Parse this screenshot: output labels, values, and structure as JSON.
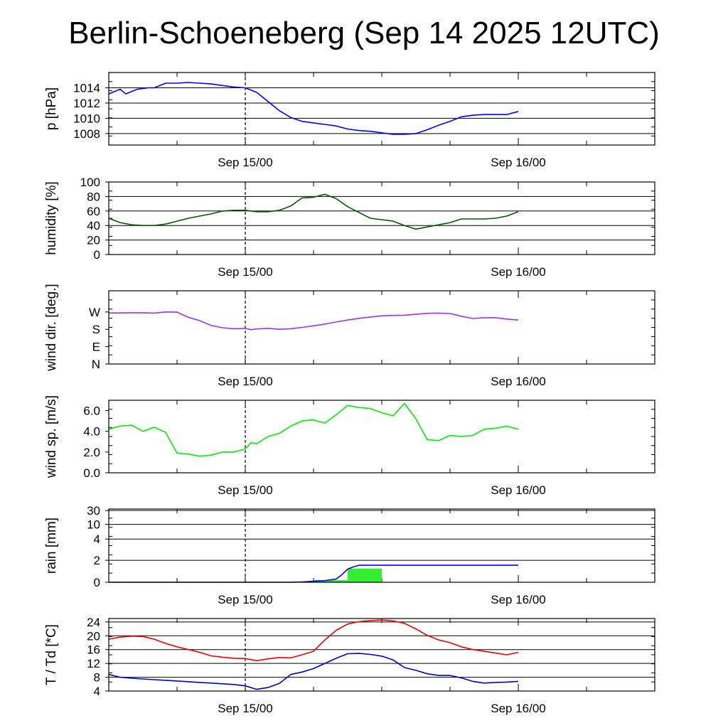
{
  "title": "Berlin-Schoeneberg (Sep 14 2025 12UTC)",
  "colors": {
    "pressure": "#0000ff",
    "humidity": "#005a00",
    "wind_dir": "#9b30ff",
    "wind_speed": "#00ee00",
    "rain_total": "#0000ff",
    "rain_bars": "#33ee33",
    "temperature": "#ee0000",
    "dewpoint": "#0000cc"
  },
  "chart_data": [
    {
      "type": "line",
      "ylabel": "p [hPa]",
      "ylim": [
        1006.5,
        1016
      ],
      "yticks": [
        "1008",
        "1010",
        "1012",
        "1014"
      ],
      "grid": true,
      "xlim": [
        -12,
        36
      ],
      "xticks": [
        "Sep 15/00",
        "Sep 16/00"
      ],
      "series": [
        {
          "x": [
            -12,
            -11.5,
            -11,
            -10.5,
            -10,
            -9.5,
            -9,
            -8.5,
            -8,
            -7.5,
            -7,
            -6,
            -5,
            -4,
            -3,
            -2,
            -1,
            0,
            1,
            2,
            3,
            4,
            5,
            6,
            7,
            8,
            9,
            10,
            11,
            12,
            13,
            14,
            15,
            16,
            17,
            18,
            19,
            20,
            21,
            22,
            23,
            24
          ],
          "y": [
            1013.2,
            1013.5,
            1013.8,
            1013.2,
            1013.5,
            1013.8,
            1013.9,
            1014,
            1014,
            1014.3,
            1014.6,
            1014.6,
            1014.7,
            1014.6,
            1014.5,
            1014.3,
            1014.1,
            1014,
            1013.4,
            1012.2,
            1011,
            1010.1,
            1009.6,
            1009.4,
            1009.2,
            1009,
            1008.6,
            1008.4,
            1008.3,
            1008.1,
            1007.9,
            1007.9,
            1008,
            1008.5,
            1009.1,
            1009.6,
            1010.2,
            1010.4,
            1010.5,
            1010.5,
            1010.5,
            1010.9
          ]
        }
      ]
    },
    {
      "type": "line",
      "ylabel": "humidity [%]",
      "ylim": [
        0,
        100
      ],
      "yticks": [
        "0",
        "20",
        "40",
        "60",
        "80",
        "100"
      ],
      "grid": true,
      "xlim": [
        -12,
        36
      ],
      "xticks": [
        "Sep 15/00",
        "Sep 16/00"
      ],
      "series": [
        {
          "x": [
            -12,
            -11,
            -10,
            -9,
            -8,
            -7,
            -6,
            -5,
            -4,
            -3,
            -2,
            -1,
            0,
            1,
            2,
            3,
            4,
            5,
            6,
            7,
            8,
            9,
            10,
            11,
            12,
            13,
            14,
            15,
            16,
            17,
            18,
            19,
            20,
            21,
            22,
            23,
            24
          ],
          "y": [
            50,
            44,
            41,
            40,
            40,
            42,
            46,
            50,
            53,
            56,
            60,
            61,
            61,
            59,
            59,
            61,
            67,
            78,
            79,
            83,
            77,
            66,
            58,
            50,
            48,
            46,
            40,
            35,
            38,
            41,
            44,
            49,
            49,
            49,
            50,
            53,
            59
          ]
        }
      ]
    },
    {
      "type": "line",
      "ylabel": "wind dir. [deg.]",
      "ylim": [
        0,
        380
      ],
      "yticks": [
        "N",
        "E",
        "S",
        "W"
      ],
      "ytick_values": [
        0,
        90,
        180,
        270
      ],
      "grid": false,
      "xlim": [
        -12,
        36
      ],
      "xticks": [
        "Sep 15/00",
        "Sep 16/00"
      ],
      "series": [
        {
          "x": [
            -12,
            -11,
            -10,
            -9,
            -8,
            -7,
            -6,
            -5,
            -4,
            -3,
            -2,
            -1,
            0,
            0.5,
            1,
            2,
            3,
            4,
            5,
            6,
            7,
            8,
            9,
            10,
            11,
            12,
            13,
            14,
            15,
            16,
            17,
            18,
            19,
            20,
            21,
            22,
            23,
            24
          ],
          "y": [
            265,
            265,
            266,
            266,
            264,
            270,
            269,
            242,
            225,
            200,
            188,
            183,
            185,
            178,
            182,
            185,
            180,
            183,
            190,
            198,
            207,
            218,
            228,
            237,
            244,
            250,
            252,
            253,
            258,
            263,
            264,
            262,
            248,
            236,
            240,
            240,
            233,
            228
          ]
        }
      ]
    },
    {
      "type": "line",
      "ylabel": "wind sp. [m/s]",
      "ylim": [
        0,
        7
      ],
      "yticks": [
        "0.0",
        "2.0",
        "4.0",
        "6.0"
      ],
      "grid": false,
      "xlim": [
        -12,
        36
      ],
      "xticks": [
        "Sep 15/00",
        "Sep 16/00"
      ],
      "series": [
        {
          "x": [
            -12,
            -11,
            -10,
            -9,
            -8,
            -7,
            -6,
            -5,
            -4,
            -3,
            -2,
            -1,
            0,
            0.5,
            1,
            2,
            3,
            4,
            5,
            6,
            7,
            8,
            9,
            10,
            11,
            12,
            13,
            14,
            15,
            16,
            17,
            18,
            19,
            20,
            21,
            22,
            23,
            24
          ],
          "y": [
            4.2,
            4.5,
            4.6,
            4.0,
            4.4,
            3.9,
            1.9,
            1.8,
            1.6,
            1.7,
            2.0,
            2.0,
            2.3,
            2.9,
            2.8,
            3.5,
            3.8,
            4.5,
            5.0,
            5.1,
            4.8,
            5.6,
            6.5,
            6.3,
            6.2,
            5.8,
            5.5,
            6.7,
            5.2,
            3.2,
            3.1,
            3.6,
            3.5,
            3.6,
            4.2,
            4.3,
            4.5,
            4.2
          ]
        }
      ]
    },
    {
      "type": "bar",
      "ylabel": "rain [mm]",
      "ylim": [
        0,
        30
      ],
      "yticks": [
        "0",
        "2",
        "4",
        "10",
        "30"
      ],
      "ytick_values": [
        0,
        2,
        4,
        10,
        30
      ],
      "scale": "nonlinear",
      "grid": true,
      "xlim": [
        -12,
        36
      ],
      "xticks": [
        "Sep 15/00",
        "Sep 16/00"
      ],
      "bars": [
        {
          "x_start": 6,
          "x_end": 9,
          "value": 0.2
        },
        {
          "x_start": 9,
          "x_end": 12,
          "value": 1.25
        }
      ],
      "series": [
        {
          "name": "accumulated",
          "x": [
            -12,
            4,
            5,
            6,
            7,
            8,
            8.5,
            9,
            9.5,
            10,
            12,
            24
          ],
          "y": [
            0,
            0,
            0.03,
            0.1,
            0.15,
            0.3,
            0.7,
            1.2,
            1.4,
            1.55,
            1.55,
            1.55
          ]
        }
      ]
    },
    {
      "type": "line",
      "ylabel": "T / Td [*C]",
      "ylim": [
        4,
        25
      ],
      "yticks": [
        "4",
        "8",
        "12",
        "16",
        "20",
        "24"
      ],
      "grid": true,
      "xlim": [
        -12,
        36
      ],
      "xticks": [
        "Sep 15/00",
        "Sep 16/00"
      ],
      "series": [
        {
          "x": [
            -12,
            -11,
            -10,
            -9,
            -8,
            -7,
            -6,
            -5,
            -4,
            -3,
            -2,
            -1,
            0,
            1,
            2,
            3,
            4,
            5,
            6,
            7,
            8,
            9,
            10,
            11,
            12,
            13,
            14,
            15,
            16,
            17,
            18,
            19,
            20,
            21,
            22,
            23,
            24
          ],
          "y": [
            19,
            19.6,
            19.9,
            19.8,
            19.0,
            17.8,
            16.8,
            16.0,
            15.2,
            14.2,
            13.8,
            13.5,
            13.4,
            12.8,
            13.3,
            13.7,
            13.6,
            14.5,
            15.5,
            18.8,
            21.6,
            23.4,
            24.1,
            24.4,
            24.6,
            24.3,
            23.6,
            22.0,
            20.1,
            18.8,
            18.0,
            16.8,
            16.0,
            15.5,
            15.0,
            14.5,
            15.2
          ]
        },
        {
          "x": [
            -12,
            -11,
            -10,
            -9,
            -8,
            -7,
            -6,
            -5,
            -4,
            -3,
            -2,
            -1,
            0,
            1,
            2,
            3,
            4,
            5,
            6,
            7,
            8,
            9,
            10,
            11,
            12,
            13,
            14,
            15,
            16,
            17,
            18,
            19,
            20,
            21,
            22,
            23,
            24
          ],
          "y": [
            8.8,
            8.0,
            7.7,
            7.5,
            7.3,
            7.1,
            6.9,
            6.7,
            6.5,
            6.3,
            6.1,
            5.9,
            5.5,
            4.5,
            5.0,
            6.2,
            8.8,
            9.5,
            10.5,
            12.0,
            13.5,
            14.8,
            14.9,
            14.6,
            14.1,
            13.0,
            10.8,
            10.0,
            9.0,
            8.5,
            8.5,
            7.8,
            6.8,
            6.3,
            6.5,
            6.6,
            6.8
          ]
        }
      ]
    }
  ]
}
